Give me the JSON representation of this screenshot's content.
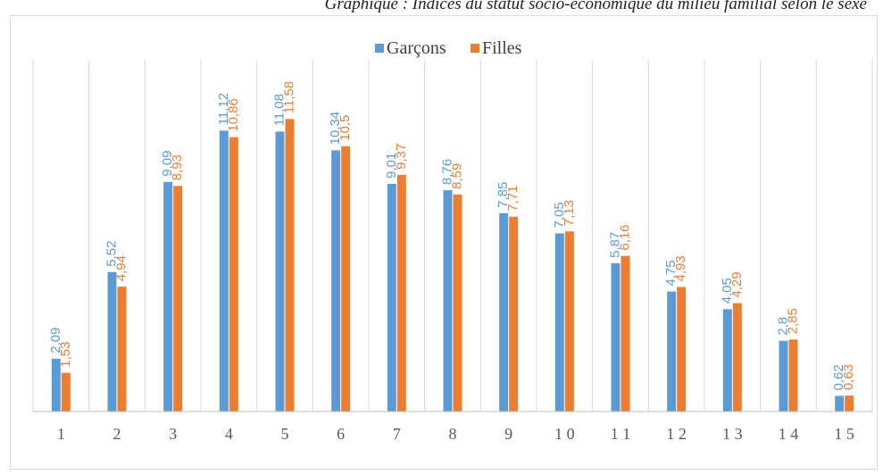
{
  "caption": "Graphique : Indices du statut socio-économique du milieu familial selon le sexe",
  "chart_data": {
    "type": "bar",
    "categories": [
      "1",
      "2",
      "3",
      "4",
      "5",
      "6",
      "7",
      "8",
      "9",
      "1 0",
      "1 1",
      "1 2",
      "1 3",
      "1 4",
      "1 5"
    ],
    "series": [
      {
        "name": "Garçons",
        "color": "#5b9bd5",
        "values": [
          2.09,
          5.52,
          9.09,
          11.12,
          11.08,
          10.34,
          9.01,
          8.76,
          7.85,
          7.05,
          5.87,
          4.75,
          4.05,
          2.8,
          0.62
        ],
        "labels": [
          "2,09",
          "5,52",
          "9,09",
          "11,12",
          "11,08",
          "10,34",
          "9,01",
          "8,76",
          "7,85",
          "7,05",
          "5,87",
          "4,75",
          "4,05",
          "2,8",
          "0,62"
        ]
      },
      {
        "name": "Filles",
        "color": "#ed7d31",
        "values": [
          1.53,
          4.94,
          8.93,
          10.86,
          11.58,
          10.5,
          9.37,
          8.59,
          7.71,
          7.13,
          6.16,
          4.93,
          4.29,
          2.85,
          0.63
        ],
        "labels": [
          "1,53",
          "4,94",
          "8,93",
          "10,86",
          "11,58",
          "10,5",
          "9,37",
          "8,59",
          "7,71",
          "7,13",
          "6,16",
          "4,93",
          "4,29",
          "2,85",
          "0,63"
        ]
      }
    ],
    "ylim": [
      0,
      14
    ],
    "grid": "vertical",
    "legend_position": "top"
  }
}
